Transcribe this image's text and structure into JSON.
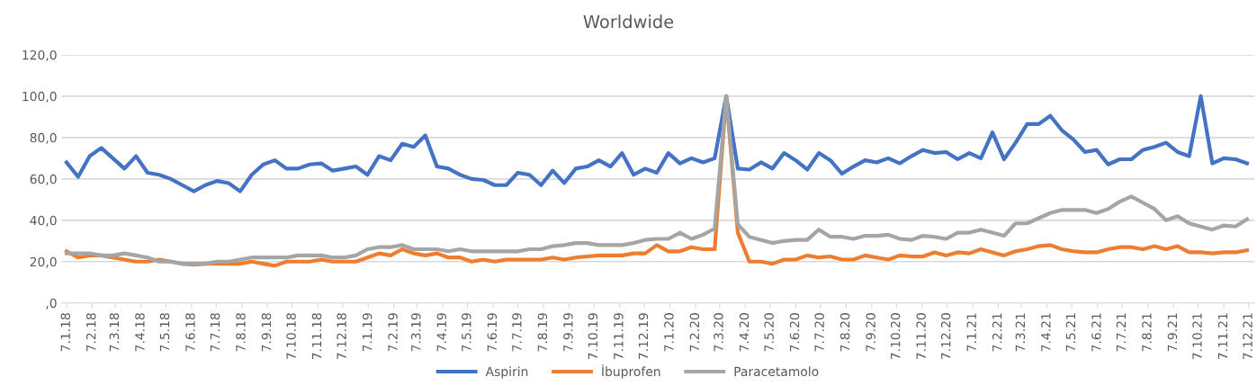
{
  "chart_data": {
    "type": "line",
    "title": "Worldwide",
    "legend": "bottom",
    "grid": "y",
    "line_style": "solid",
    "marker": "none",
    "x": [
      "2018-01-07",
      "2018-01-21",
      "2018-02-04",
      "2018-02-18",
      "2018-03-04",
      "2018-03-18",
      "2018-04-01",
      "2018-04-15",
      "2018-04-29",
      "2018-05-13",
      "2018-05-27",
      "2018-06-10",
      "2018-06-24",
      "2018-07-08",
      "2018-07-22",
      "2018-08-05",
      "2018-08-19",
      "2018-09-02",
      "2018-09-16",
      "2018-09-30",
      "2018-10-14",
      "2018-10-28",
      "2018-11-11",
      "2018-11-25",
      "2018-12-09",
      "2018-12-23",
      "2019-01-06",
      "2019-01-20",
      "2019-02-03",
      "2019-02-17",
      "2019-03-03",
      "2019-03-17",
      "2019-03-31",
      "2019-04-14",
      "2019-04-28",
      "2019-05-12",
      "2019-05-26",
      "2019-06-09",
      "2019-06-23",
      "2019-07-07",
      "2019-07-21",
      "2019-08-04",
      "2019-08-18",
      "2019-09-01",
      "2019-09-15",
      "2019-09-29",
      "2019-10-13",
      "2019-10-27",
      "2019-11-10",
      "2019-11-24",
      "2019-12-08",
      "2019-12-22",
      "2020-01-05",
      "2020-01-19",
      "2020-02-02",
      "2020-02-16",
      "2020-03-01",
      "2020-03-15",
      "2020-03-29",
      "2020-04-12",
      "2020-04-26",
      "2020-05-10",
      "2020-05-24",
      "2020-06-07",
      "2020-06-21",
      "2020-07-05",
      "2020-07-19",
      "2020-08-02",
      "2020-08-16",
      "2020-08-30",
      "2020-09-13",
      "2020-09-27",
      "2020-10-11",
      "2020-10-25",
      "2020-11-08",
      "2020-11-22",
      "2020-12-06",
      "2020-12-20",
      "2021-01-03",
      "2021-01-17",
      "2021-01-31",
      "2021-02-14",
      "2021-02-28",
      "2021-03-14",
      "2021-03-28",
      "2021-04-11",
      "2021-04-25",
      "2021-05-09",
      "2021-05-23",
      "2021-06-06",
      "2021-06-20",
      "2021-07-04",
      "2021-07-18",
      "2021-08-01",
      "2021-08-15",
      "2021-08-29",
      "2021-09-12",
      "2021-09-26",
      "2021-10-10",
      "2021-10-24",
      "2021-11-07",
      "2021-11-21",
      "2021-12-05"
    ],
    "series": [
      {
        "name": "Aspirin",
        "color": "#4472c4",
        "values": [
          68,
          61,
          71,
          75,
          70,
          65,
          71,
          63,
          62,
          60,
          57,
          54,
          57,
          59,
          58,
          54,
          62,
          67,
          69,
          65,
          65,
          67,
          67.5,
          64,
          65,
          66,
          62,
          71,
          69,
          77,
          75.5,
          81,
          66,
          65,
          62,
          60,
          59.5,
          57,
          57,
          63,
          62,
          57,
          64,
          58,
          65,
          66,
          69,
          66,
          72.5,
          62,
          65,
          63,
          72.5,
          67.5,
          70,
          68,
          70,
          100,
          65,
          64.5,
          68,
          65,
          72.5,
          69,
          64.5,
          72.5,
          69,
          62.5,
          66,
          69,
          68,
          70,
          67.5,
          71,
          74,
          72.5,
          73,
          69.5,
          72.5,
          70,
          82.5,
          69.5,
          77.5,
          86.5,
          86.5,
          90.5,
          83.5,
          79,
          73,
          74,
          67,
          69.5,
          69.5,
          74,
          75.5,
          77.5,
          73,
          71,
          100,
          67.5,
          70,
          69.5,
          67.5
        ]
      },
      {
        "name": "İbuprofen",
        "color": "#ed7d31",
        "values": [
          25,
          22,
          23,
          23,
          22,
          21,
          20,
          20,
          21,
          20,
          19,
          18.5,
          19,
          19,
          19,
          19,
          20,
          19,
          18,
          20,
          20,
          20,
          21,
          20,
          20,
          20,
          22,
          24,
          23,
          26,
          24,
          23,
          24,
          22,
          22,
          20,
          21,
          20,
          21,
          21,
          21,
          21,
          22,
          21,
          22,
          22.5,
          23,
          23,
          23,
          24,
          24,
          28,
          25,
          25,
          27,
          26,
          26,
          100,
          34,
          20,
          20,
          19,
          21,
          21,
          23,
          22,
          22.5,
          21,
          21,
          23,
          22,
          21,
          23,
          22.5,
          22.5,
          24.5,
          23,
          24.5,
          24,
          26,
          24.5,
          23,
          25,
          26,
          27.5,
          28,
          26,
          25,
          24.5,
          24.5,
          26,
          27,
          27,
          26,
          27.5,
          26,
          27.5,
          24.5,
          24.5,
          24,
          24.5,
          24.5,
          25.5
        ]
      },
      {
        "name": "Paracetamolo",
        "color": "#a5a5a5",
        "values": [
          24,
          24,
          24,
          23,
          23,
          24,
          23,
          22,
          20,
          20,
          19,
          19,
          19,
          20,
          20,
          21,
          22,
          22,
          22,
          22,
          23,
          23,
          23,
          22,
          22,
          23,
          26,
          27,
          27,
          28,
          26,
          26,
          26,
          25,
          26,
          25,
          25,
          25,
          25,
          25,
          26,
          26,
          27.5,
          28,
          29,
          29,
          28,
          28,
          28,
          29,
          30.5,
          31,
          31,
          34,
          31,
          33,
          36,
          100,
          38,
          32,
          30.5,
          29,
          30,
          30.5,
          30.5,
          35.5,
          32,
          32,
          31,
          32.5,
          32.5,
          33,
          31,
          30.5,
          32.5,
          32,
          31,
          34,
          34,
          35.5,
          34,
          32.5,
          38.5,
          38.5,
          41,
          43.5,
          45,
          45,
          45,
          43.5,
          45.5,
          49,
          51.5,
          48.5,
          45.5,
          40,
          42,
          38.5,
          37,
          35.5,
          37.5,
          37,
          40.5
        ]
      }
    ],
    "xlim": [
      "2018-01-01",
      "2021-12-14"
    ],
    "xticks": [
      {
        "value": "2018-01-07",
        "label": "7.1.18"
      },
      {
        "value": "2018-02-07",
        "label": "7.2.18"
      },
      {
        "value": "2018-03-07",
        "label": "7.3.18"
      },
      {
        "value": "2018-04-07",
        "label": "7.4.18"
      },
      {
        "value": "2018-05-07",
        "label": "7.5.18"
      },
      {
        "value": "2018-06-07",
        "label": "7.6.18"
      },
      {
        "value": "2018-07-07",
        "label": "7.7.18"
      },
      {
        "value": "2018-08-07",
        "label": "7.8.18"
      },
      {
        "value": "2018-09-07",
        "label": "7.9.18"
      },
      {
        "value": "2018-10-07",
        "label": "7.10.18"
      },
      {
        "value": "2018-11-07",
        "label": "7.11.18"
      },
      {
        "value": "2018-12-07",
        "label": "7.12.18"
      },
      {
        "value": "2019-01-07",
        "label": "7.1.19"
      },
      {
        "value": "2019-02-07",
        "label": "7.2.19"
      },
      {
        "value": "2019-03-07",
        "label": "7.3.19"
      },
      {
        "value": "2019-04-07",
        "label": "7.4.19"
      },
      {
        "value": "2019-05-07",
        "label": "7.5.19"
      },
      {
        "value": "2019-06-07",
        "label": "7.6.19"
      },
      {
        "value": "2019-07-07",
        "label": "7.7.19"
      },
      {
        "value": "2019-08-07",
        "label": "7.8.19"
      },
      {
        "value": "2019-09-07",
        "label": "7.9.19"
      },
      {
        "value": "2019-10-07",
        "label": "7.10.19"
      },
      {
        "value": "2019-11-07",
        "label": "7.11.19"
      },
      {
        "value": "2019-12-07",
        "label": "7.12.19"
      },
      {
        "value": "2020-01-07",
        "label": "7.1.20"
      },
      {
        "value": "2020-02-07",
        "label": "7.2.20"
      },
      {
        "value": "2020-03-07",
        "label": "7.3.20"
      },
      {
        "value": "2020-04-07",
        "label": "7.4.20"
      },
      {
        "value": "2020-05-07",
        "label": "7.5.20"
      },
      {
        "value": "2020-06-07",
        "label": "7.6.20"
      },
      {
        "value": "2020-07-07",
        "label": "7.7.20"
      },
      {
        "value": "2020-08-07",
        "label": "7.8.20"
      },
      {
        "value": "2020-09-07",
        "label": "7.9.20"
      },
      {
        "value": "2020-10-07",
        "label": "7.10.20"
      },
      {
        "value": "2020-11-07",
        "label": "7.11.20"
      },
      {
        "value": "2020-12-07",
        "label": "7.12.20"
      },
      {
        "value": "2021-01-07",
        "label": "7.1.21"
      },
      {
        "value": "2021-02-07",
        "label": "7.2.21"
      },
      {
        "value": "2021-03-07",
        "label": "7.3.21"
      },
      {
        "value": "2021-04-07",
        "label": "7.4.21"
      },
      {
        "value": "2021-05-07",
        "label": "7.5.21"
      },
      {
        "value": "2021-06-07",
        "label": "7.6.21"
      },
      {
        "value": "2021-07-07",
        "label": "7.7.21"
      },
      {
        "value": "2021-08-07",
        "label": "7.8.21"
      },
      {
        "value": "2021-09-07",
        "label": "7.9.21"
      },
      {
        "value": "2021-10-07",
        "label": "7.10.21"
      },
      {
        "value": "2021-11-07",
        "label": "7.11.21"
      },
      {
        "value": "2021-12-07",
        "label": "7.12.21"
      }
    ],
    "ylim": [
      0,
      120
    ],
    "yticks": [
      {
        "value": 0,
        "label": ",0"
      },
      {
        "value": 20,
        "label": "20,0"
      },
      {
        "value": 40,
        "label": "40,0"
      },
      {
        "value": 60,
        "label": "60,0"
      },
      {
        "value": 80,
        "label": "80,0"
      },
      {
        "value": 100,
        "label": "100,0"
      },
      {
        "value": 120,
        "label": "120,0"
      }
    ]
  }
}
